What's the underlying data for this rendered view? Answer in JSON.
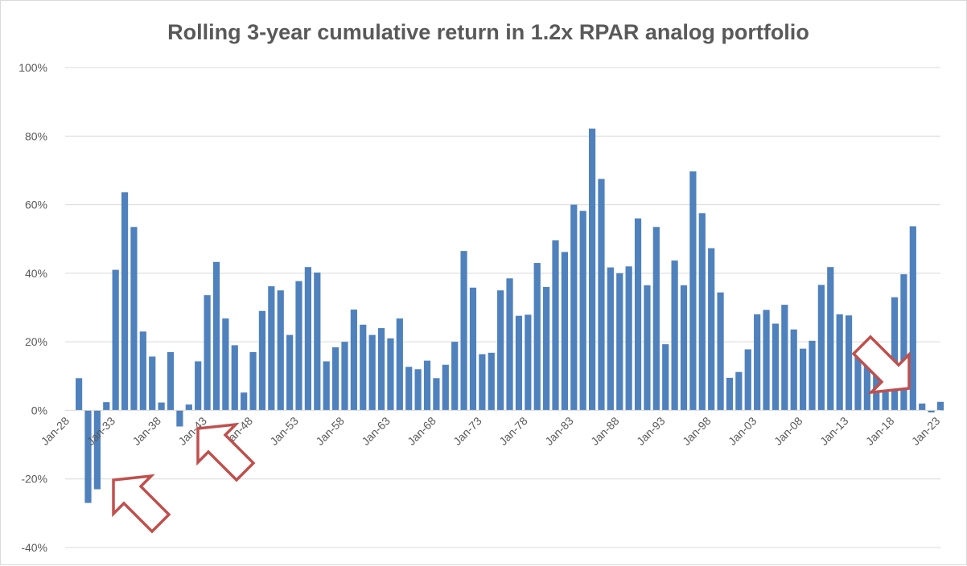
{
  "chart_data": {
    "type": "bar",
    "title": "Rolling 3-year cumulative return in 1.2x RPAR analog portfolio",
    "xlabel": "",
    "ylabel": "",
    "ylim": [
      -0.4,
      1.0
    ],
    "y_tick_values": [
      -0.4,
      -0.2,
      0,
      0.2,
      0.4,
      0.6,
      0.8,
      1.0
    ],
    "y_tick_labels": [
      "-40%",
      "-20%",
      "0%",
      "20%",
      "40%",
      "60%",
      "80%",
      "100%"
    ],
    "x_tick_labels": [
      "Jan-28",
      "Jan-33",
      "Jan-38",
      "Jan-43",
      "Jan-48",
      "Jan-53",
      "Jan-58",
      "Jan-63",
      "Jan-68",
      "Jan-73",
      "Jan-78",
      "Jan-83",
      "Jan-88",
      "Jan-93",
      "Jan-98",
      "Jan-03",
      "Jan-08",
      "Jan-13",
      "Jan-18",
      "Jan-23"
    ],
    "x_tick_every": 5,
    "grid": true,
    "legend": "none",
    "bar_color": "#4f81bd",
    "categories": [
      "Jan-28",
      "Jan-29",
      "Jan-30",
      "Jan-31",
      "Jan-32",
      "Jan-33",
      "Jan-34",
      "Jan-35",
      "Jan-36",
      "Jan-37",
      "Jan-38",
      "Jan-39",
      "Jan-40",
      "Jan-41",
      "Jan-42",
      "Jan-43",
      "Jan-44",
      "Jan-45",
      "Jan-46",
      "Jan-47",
      "Jan-48",
      "Jan-49",
      "Jan-50",
      "Jan-51",
      "Jan-52",
      "Jan-53",
      "Jan-54",
      "Jan-55",
      "Jan-56",
      "Jan-57",
      "Jan-58",
      "Jan-59",
      "Jan-60",
      "Jan-61",
      "Jan-62",
      "Jan-63",
      "Jan-64",
      "Jan-65",
      "Jan-66",
      "Jan-67",
      "Jan-68",
      "Jan-69",
      "Jan-70",
      "Jan-71",
      "Jan-72",
      "Jan-73",
      "Jan-74",
      "Jan-75",
      "Jan-76",
      "Jan-77",
      "Jan-78",
      "Jan-79",
      "Jan-80",
      "Jan-81",
      "Jan-82",
      "Jan-83",
      "Jan-84",
      "Jan-85",
      "Jan-86",
      "Jan-87",
      "Jan-88",
      "Jan-89",
      "Jan-90",
      "Jan-91",
      "Jan-92",
      "Jan-93",
      "Jan-94",
      "Jan-95",
      "Jan-96",
      "Jan-97",
      "Jan-98",
      "Jan-99",
      "Jan-00",
      "Jan-01",
      "Jan-02",
      "Jan-03",
      "Jan-04",
      "Jan-05",
      "Jan-06",
      "Jan-07",
      "Jan-08",
      "Jan-09",
      "Jan-10",
      "Jan-11",
      "Jan-12",
      "Jan-13",
      "Jan-14",
      "Jan-15",
      "Jan-16",
      "Jan-17",
      "Jan-18",
      "Jan-19",
      "Jan-20",
      "Jan-21",
      "Jan-22",
      "Jan-23"
    ],
    "values": [
      null,
      0.094,
      -0.27,
      -0.23,
      0.024,
      0.41,
      0.636,
      0.535,
      0.23,
      0.157,
      0.023,
      0.17,
      -0.047,
      0.017,
      0.143,
      0.336,
      0.433,
      0.268,
      0.19,
      0.052,
      0.17,
      0.29,
      0.362,
      0.35,
      0.22,
      0.377,
      0.418,
      0.402,
      0.143,
      0.184,
      0.2,
      0.294,
      0.25,
      0.22,
      0.24,
      0.21,
      0.268,
      0.127,
      0.12,
      0.145,
      0.094,
      0.133,
      0.2,
      0.465,
      0.358,
      0.164,
      0.168,
      0.35,
      0.385,
      0.276,
      0.279,
      0.43,
      0.36,
      0.496,
      0.462,
      0.6,
      0.582,
      0.822,
      0.675,
      0.417,
      0.4,
      0.42,
      0.56,
      0.365,
      0.535,
      0.193,
      0.437,
      0.365,
      0.697,
      0.575,
      0.473,
      0.344,
      0.095,
      0.112,
      0.178,
      0.28,
      0.293,
      0.253,
      0.308,
      0.236,
      0.18,
      0.203,
      0.366,
      0.418,
      0.28,
      0.277,
      0.175,
      0.2,
      0.17,
      0.165,
      0.33,
      0.397,
      0.537,
      0.02,
      -0.006,
      0.025
    ],
    "annotations": [
      {
        "type": "arrow",
        "direction": "up-left",
        "color": "#c0504d",
        "near": "Jan-33"
      },
      {
        "type": "arrow",
        "direction": "up-left",
        "color": "#c0504d",
        "near": "Jan-43"
      },
      {
        "type": "arrow",
        "direction": "down-right",
        "color": "#c0504d",
        "near": "Jan-20"
      }
    ]
  }
}
